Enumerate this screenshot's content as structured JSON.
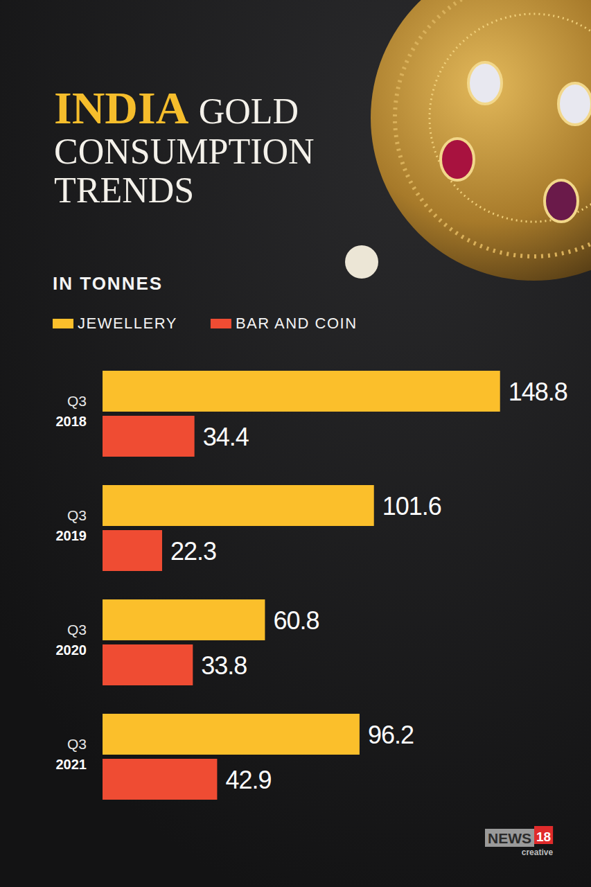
{
  "chart_data": {
    "type": "bar",
    "orientation": "horizontal",
    "title": "INDIA GOLD CONSUMPTION TRENDS",
    "subtitle": "IN TONNES",
    "categories": [
      "Q3 2018",
      "Q3 2019",
      "Q3 2020",
      "Q3 2021"
    ],
    "series": [
      {
        "name": "JEWELLERY",
        "color": "#fbbf2b",
        "values": [
          148.8,
          101.6,
          60.8,
          96.2
        ]
      },
      {
        "name": "BAR AND COIN",
        "color": "#ef4c33",
        "values": [
          34.4,
          22.3,
          33.8,
          42.9
        ]
      }
    ],
    "xlim": [
      0,
      180
    ],
    "data_labels": true,
    "tick_labels": "y",
    "grid": false,
    "legend": "top",
    "annotations": [
      "NEWS",
      "18",
      "creative"
    ]
  }
}
